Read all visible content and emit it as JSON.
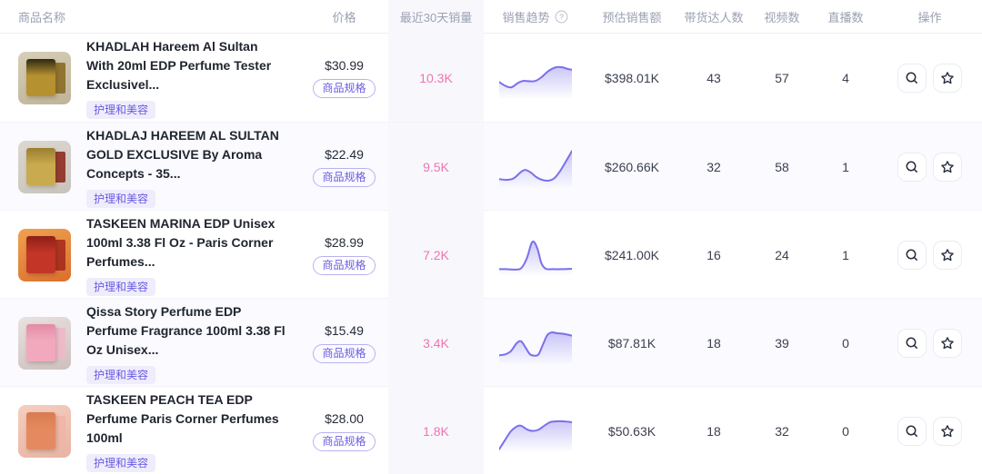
{
  "colors": {
    "accent_purple": "#6a5be2",
    "sales_pink": "#ef74b2",
    "spark_line": "#7a70ea",
    "spark_fill_top": "#c9c4f4",
    "header_text": "#9ba1b3",
    "row_alt_bg": "#fafaff",
    "sales_col_bg": "#f8f8fc"
  },
  "table": {
    "columns": [
      {
        "label": "商品名称"
      },
      {
        "label": "价格"
      },
      {
        "label": "最近30天销量"
      },
      {
        "label": "销售趋势"
      },
      {
        "label": "预估销售额"
      },
      {
        "label": "带货达人数"
      },
      {
        "label": "视频数"
      },
      {
        "label": "直播数"
      },
      {
        "label": "操作"
      }
    ],
    "trend_help_icon": "?",
    "rows": [
      {
        "title": "KHADLAH Hareem Al Sultan With 20ml EDP Perfume Tester Exclusivel...",
        "category_tag": "护理和美容",
        "price": "$30.99",
        "spec_button": "商品规格",
        "sales30": "10.3K",
        "est_revenue": "$398.01K",
        "creators": "43",
        "videos": "57",
        "lives": "4",
        "trend_points": [
          [
            0,
            60
          ],
          [
            9,
            70
          ],
          [
            17,
            73
          ],
          [
            26,
            62
          ],
          [
            33,
            57
          ],
          [
            42,
            58
          ],
          [
            50,
            57
          ],
          [
            58,
            48
          ],
          [
            68,
            32
          ],
          [
            78,
            23
          ],
          [
            87,
            23
          ],
          [
            94,
            27
          ],
          [
            100,
            29
          ]
        ],
        "image_palette": {
          "bg": "#d8cfb8",
          "bg2": "#bfb398",
          "main": "#b6912f",
          "accent": "#2e2813",
          "side": "#8a6c22"
        }
      },
      {
        "title": "KHADLAJ HAREEM AL SULTAN GOLD EXCLUSIVE By Aroma Concepts - 35...",
        "category_tag": "护理和美容",
        "price": "$22.49",
        "spec_button": "商品规格",
        "sales30": "9.5K",
        "est_revenue": "$260.66K",
        "creators": "32",
        "videos": "58",
        "lives": "1",
        "trend_points": [
          [
            0,
            80
          ],
          [
            10,
            82
          ],
          [
            20,
            78
          ],
          [
            30,
            62
          ],
          [
            36,
            57
          ],
          [
            43,
            63
          ],
          [
            51,
            75
          ],
          [
            59,
            82
          ],
          [
            67,
            84
          ],
          [
            75,
            79
          ],
          [
            83,
            62
          ],
          [
            91,
            38
          ],
          [
            100,
            10
          ]
        ],
        "image_palette": {
          "bg": "#dcd8d1",
          "bg2": "#c8c3ba",
          "main": "#c9aa4e",
          "accent": "#9a7f30",
          "side": "#8f2c20"
        }
      },
      {
        "title": "TASKEEN MARINA EDP Unisex 100ml 3.38 Fl Oz - Paris Corner Perfumes...",
        "category_tag": "护理和美容",
        "price": "$28.99",
        "spec_button": "商品规格",
        "sales30": "7.2K",
        "est_revenue": "$241.00K",
        "creators": "16",
        "videos": "24",
        "lives": "1",
        "trend_points": [
          [
            0,
            85
          ],
          [
            10,
            85
          ],
          [
            20,
            86
          ],
          [
            30,
            83
          ],
          [
            38,
            58
          ],
          [
            44,
            22
          ],
          [
            48,
            17
          ],
          [
            53,
            36
          ],
          [
            58,
            70
          ],
          [
            64,
            84
          ],
          [
            74,
            85
          ],
          [
            86,
            85
          ],
          [
            100,
            84
          ]
        ],
        "image_palette": {
          "bg": "#f0a14e",
          "bg2": "#d96f2e",
          "main": "#c23527",
          "accent": "#8e1f16",
          "side": "#a82a1e"
        }
      },
      {
        "title": "Qissa Story Perfume EDP Perfume Fragrance 100ml 3.38 Fl Oz Unisex...",
        "category_tag": "护理和美容",
        "price": "$15.49",
        "spec_button": "商品规格",
        "sales30": "3.4K",
        "est_revenue": "$87.81K",
        "creators": "18",
        "videos": "39",
        "lives": "0",
        "trend_points": [
          [
            0,
            80
          ],
          [
            8,
            78
          ],
          [
            16,
            70
          ],
          [
            24,
            50
          ],
          [
            30,
            45
          ],
          [
            36,
            60
          ],
          [
            42,
            77
          ],
          [
            48,
            81
          ],
          [
            54,
            78
          ],
          [
            60,
            54
          ],
          [
            66,
            30
          ],
          [
            72,
            23
          ],
          [
            80,
            25
          ],
          [
            90,
            27
          ],
          [
            100,
            31
          ]
        ],
        "image_palette": {
          "bg": "#e9e2e0",
          "bg2": "#cdbfbc",
          "main": "#f2a9be",
          "accent": "#e18ca6",
          "side": "#f0b7c8"
        }
      },
      {
        "title": "TASKEEN PEACH TEA EDP Perfume Paris Corner Perfumes 100ml",
        "category_tag": "护理和美容",
        "price": "$28.00",
        "spec_button": "商品规格",
        "sales30": "1.8K",
        "est_revenue": "$50.63K",
        "creators": "18",
        "videos": "32",
        "lives": "0",
        "trend_points": [
          [
            0,
            95
          ],
          [
            8,
            72
          ],
          [
            16,
            50
          ],
          [
            24,
            38
          ],
          [
            30,
            36
          ],
          [
            38,
            45
          ],
          [
            46,
            49
          ],
          [
            54,
            46
          ],
          [
            62,
            36
          ],
          [
            70,
            27
          ],
          [
            78,
            25
          ],
          [
            88,
            25
          ],
          [
            100,
            27
          ]
        ],
        "image_palette": {
          "bg": "#f4cfc0",
          "bg2": "#e8b3a3",
          "main": "#e58a60",
          "accent": "#d97a50",
          "side": "#eeb6a4"
        }
      }
    ]
  }
}
